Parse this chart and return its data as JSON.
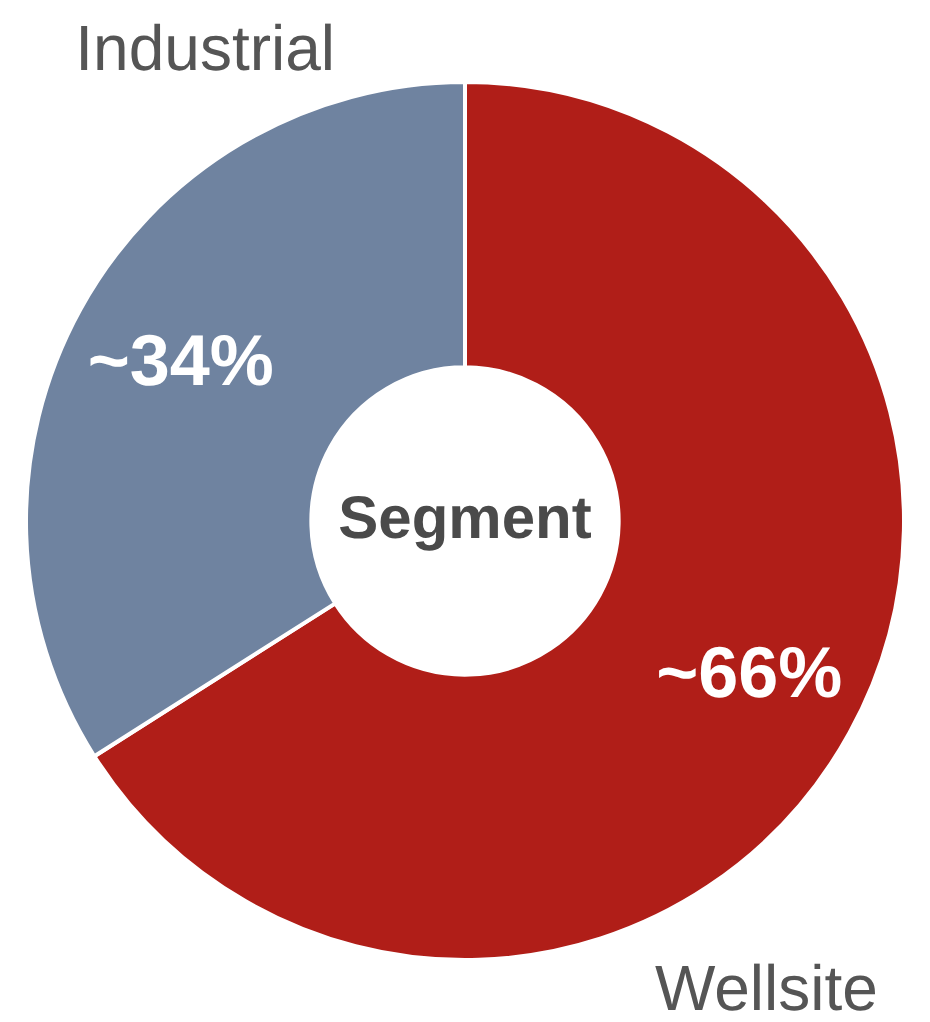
{
  "chart_data": {
    "type": "donut",
    "title": "Segment",
    "categories": [
      "Wellsite",
      "Industrial"
    ],
    "values": [
      66,
      34
    ],
    "colors": [
      "#b01e18",
      "#6f83a0"
    ],
    "value_labels": [
      "~66%",
      "~34%"
    ],
    "legend": false
  }
}
